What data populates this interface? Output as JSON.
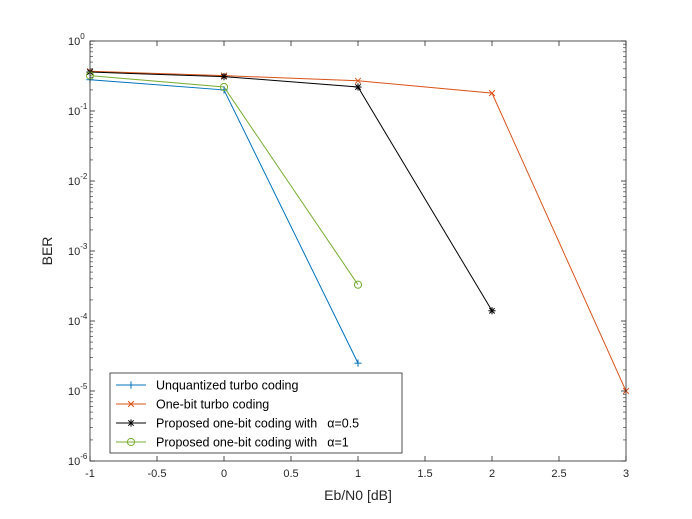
{
  "chart_data": {
    "type": "line",
    "title": "",
    "xlabel": "Eb/N0 [dB]",
    "ylabel": "BER",
    "xlim": [
      -1,
      3
    ],
    "ylim": [
      1e-06,
      1
    ],
    "yscale": "log",
    "grid": false,
    "legend_position": "bottom-left",
    "x_ticks": [
      -1,
      -0.5,
      0,
      0.5,
      1,
      1.5,
      2,
      2.5,
      3
    ],
    "x_tick_labels": [
      "-1",
      "-0.5",
      "0",
      "0.5",
      "1",
      "1.5",
      "2",
      "2.5",
      "3"
    ],
    "y_ticks": [
      {
        "value": 1,
        "base": "10",
        "exp": "0"
      },
      {
        "value": 0.1,
        "base": "10",
        "exp": "-1"
      },
      {
        "value": 0.01,
        "base": "10",
        "exp": "-2"
      },
      {
        "value": 0.001,
        "base": "10",
        "exp": "-3"
      },
      {
        "value": 0.0001,
        "base": "10",
        "exp": "-4"
      },
      {
        "value": 1e-05,
        "base": "10",
        "exp": "-5"
      },
      {
        "value": 1e-06,
        "base": "10",
        "exp": "-6"
      }
    ],
    "series": [
      {
        "name": "Unquantized turbo coding",
        "color": "#0072BD",
        "marker": "plus",
        "x": [
          -1,
          0,
          1
        ],
        "y": [
          0.28,
          0.2,
          2.5e-05
        ]
      },
      {
        "name": "One-bit turbo coding",
        "color": "#D95319",
        "marker": "x",
        "x": [
          -1,
          0,
          1,
          2,
          3
        ],
        "y": [
          0.37,
          0.32,
          0.27,
          0.18,
          1e-05
        ]
      },
      {
        "name": "Proposed one-bit coding with",
        "alpha_label": "α=0.5",
        "color": "#000000",
        "marker": "star",
        "x": [
          -1,
          0,
          1,
          2
        ],
        "y": [
          0.36,
          0.31,
          0.22,
          0.00014
        ]
      },
      {
        "name": "Proposed one-bit coding with",
        "alpha_label": "α=1",
        "color": "#77AC30",
        "marker": "circle",
        "x": [
          -1,
          0,
          1
        ],
        "y": [
          0.32,
          0.22,
          0.00033
        ]
      }
    ]
  }
}
